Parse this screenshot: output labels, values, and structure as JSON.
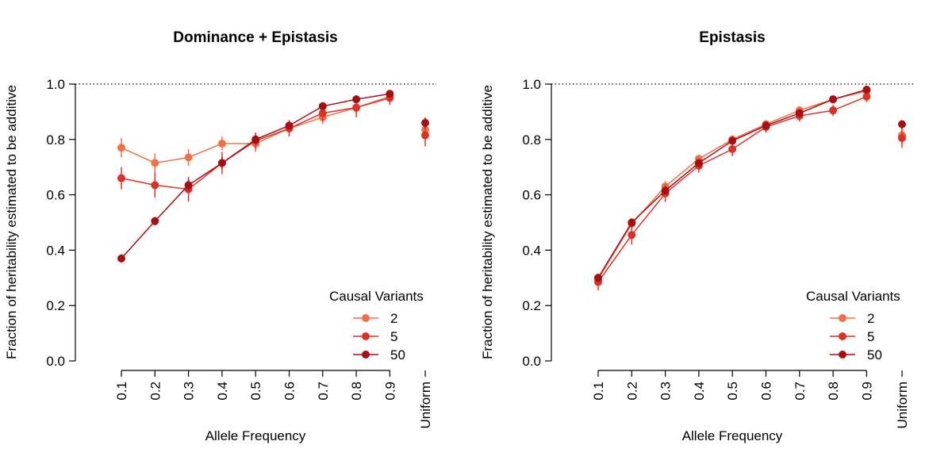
{
  "chart_data": [
    {
      "type": "line",
      "title": "Dominance + Epistasis",
      "xlabel": "Allele Frequency",
      "ylabel": "Fraction of heritability estimated to be additive",
      "categories": [
        "0.1",
        "0.2",
        "0.3",
        "0.4",
        "0.5",
        "0.6",
        "0.7",
        "0.8",
        "0.9"
      ],
      "extra_category": "Uniform",
      "yticks": [
        "0.0",
        "0.2",
        "0.4",
        "0.6",
        "0.8",
        "1.0"
      ],
      "ylim": [
        0,
        1
      ],
      "reference_line": 1.0,
      "legend": {
        "title": "Causal Variants",
        "position": "bottom-right"
      },
      "series": [
        {
          "name": "2",
          "color": "#f07048",
          "values": [
            0.77,
            0.715,
            0.735,
            0.785,
            0.785,
            0.84,
            0.88,
            0.915,
            0.955
          ],
          "errors": [
            0.035,
            0.035,
            0.03,
            0.025,
            0.03,
            0.025,
            0.025,
            0.025,
            0.02
          ],
          "uniform": 0.835,
          "uniform_error": 0.03
        },
        {
          "name": "5",
          "color": "#dd3126",
          "values": [
            0.66,
            0.635,
            0.62,
            0.715,
            0.795,
            0.84,
            0.895,
            0.915,
            0.95
          ],
          "errors": [
            0.04,
            0.045,
            0.045,
            0.04,
            0.03,
            0.03,
            0.03,
            0.035,
            0.025
          ],
          "uniform": 0.815,
          "uniform_error": 0.04
        },
        {
          "name": "50",
          "color": "#a50f15",
          "values": [
            0.37,
            0.505,
            0.635,
            0.715,
            0.8,
            0.85,
            0.92,
            0.945,
            0.965
          ],
          "errors": [
            0.015,
            0.015,
            0.02,
            0.02,
            0.015,
            0.015,
            0.015,
            0.015,
            0.01
          ],
          "uniform": 0.86,
          "uniform_error": 0.02
        }
      ]
    },
    {
      "type": "line",
      "title": "Epistasis",
      "xlabel": "Allele Frequency",
      "ylabel": "Fraction of heritability estimated to be additive",
      "categories": [
        "0.1",
        "0.2",
        "0.3",
        "0.4",
        "0.5",
        "0.6",
        "0.7",
        "0.8",
        "0.9"
      ],
      "extra_category": "Uniform",
      "yticks": [
        "0.0",
        "0.2",
        "0.4",
        "0.6",
        "0.8",
        "1.0"
      ],
      "ylim": [
        0,
        1
      ],
      "reference_line": 1.0,
      "legend": {
        "title": "Causal Variants",
        "position": "bottom-right"
      },
      "series": [
        {
          "name": "2",
          "color": "#f07048",
          "values": [
            0.295,
            0.495,
            0.63,
            0.73,
            0.8,
            0.855,
            0.905,
            0.945,
            0.975
          ],
          "errors": [
            0.02,
            0.02,
            0.02,
            0.015,
            0.015,
            0.015,
            0.015,
            0.015,
            0.01
          ],
          "uniform": 0.815,
          "uniform_error": 0.03
        },
        {
          "name": "5",
          "color": "#dd3126",
          "values": [
            0.285,
            0.455,
            0.605,
            0.705,
            0.765,
            0.845,
            0.885,
            0.905,
            0.955
          ],
          "errors": [
            0.03,
            0.035,
            0.03,
            0.025,
            0.025,
            0.02,
            0.02,
            0.02,
            0.02
          ],
          "uniform": 0.805,
          "uniform_error": 0.035
        },
        {
          "name": "50",
          "color": "#a50f15",
          "values": [
            0.3,
            0.5,
            0.615,
            0.715,
            0.795,
            0.85,
            0.895,
            0.945,
            0.98
          ],
          "errors": [
            0.015,
            0.015,
            0.015,
            0.015,
            0.015,
            0.015,
            0.015,
            0.01,
            0.01
          ],
          "uniform": 0.855,
          "uniform_error": 0.015
        }
      ]
    }
  ]
}
